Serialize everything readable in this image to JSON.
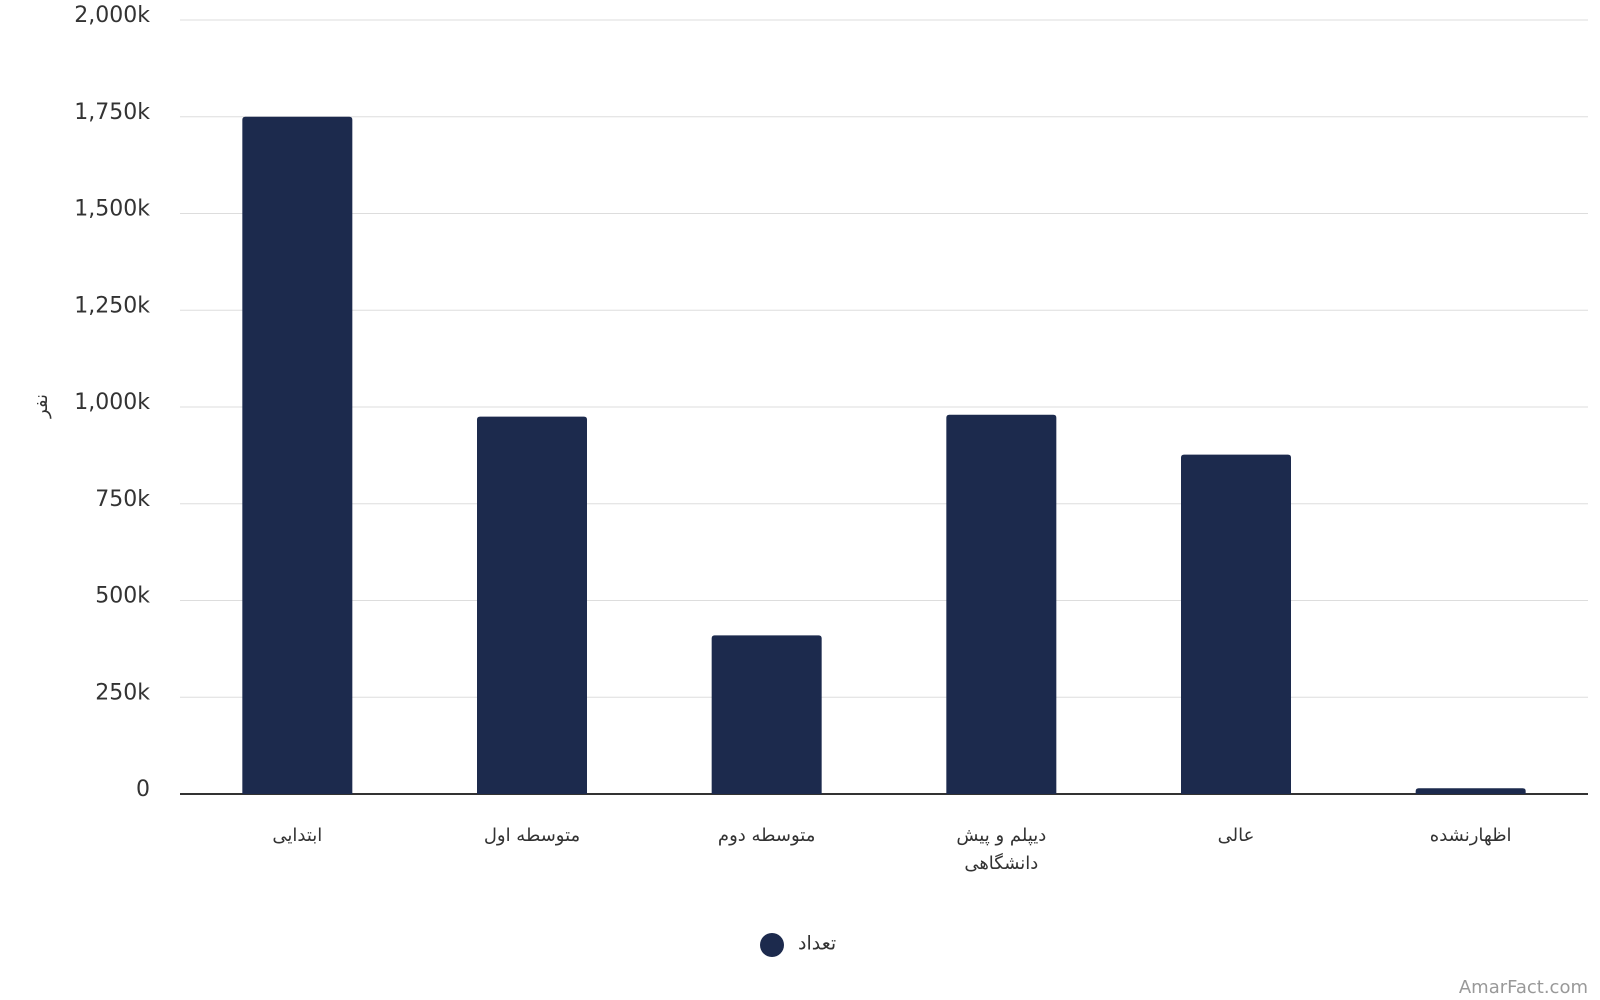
{
  "chart_data": {
    "type": "bar",
    "y_label": "نفر",
    "categories": [
      "ابتدایی",
      "متوسطه اول",
      "متوسطه دوم",
      "دیپلم و پیش دانشگاهی",
      "عالی",
      "اظهارنشده"
    ],
    "series": [
      {
        "name": "تعداد",
        "color": "#1c2a4d",
        "values": [
          1750000,
          975000,
          410000,
          980000,
          877000,
          15000
        ]
      }
    ],
    "ylim": [
      0,
      2000000
    ],
    "yticks": [
      0,
      {
        "value": 250000,
        "label": "250k"
      },
      {
        "value": 500000,
        "label": "500k"
      },
      {
        "value": 750000,
        "label": "750k"
      },
      {
        "value": 1000000,
        "label": "1,000k"
      },
      {
        "value": 1250000,
        "label": "1,250k"
      },
      {
        "value": 1500000,
        "label": "1,500k"
      },
      {
        "value": 1750000,
        "label": "1,750k"
      },
      {
        "value": 2000000,
        "label": "2,000k"
      }
    ],
    "grid": true,
    "legend": "bottom",
    "watermark": "AmarFact.com"
  }
}
